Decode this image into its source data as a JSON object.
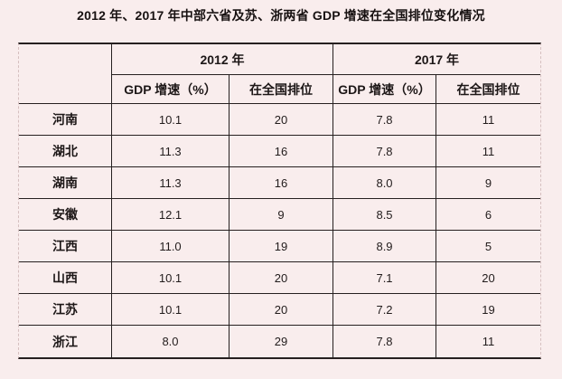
{
  "title": "2012 年、2017 年中部六省及苏、浙两省 GDP 增速在全国排位变化情况",
  "colors": {
    "page_background": "#f9eded",
    "grid_border": "#262020",
    "outer_dashed_border": "#d6c0c0",
    "text": "#1d1717"
  },
  "table": {
    "corner_label": "",
    "year_headers": [
      "2012 年",
      "2017 年"
    ],
    "sub_headers": [
      "GDP 增速（%）",
      "在全国排位",
      "GDP 增速（%）",
      "在全国排位"
    ],
    "rows": [
      {
        "province": "河南",
        "values": [
          "10.1",
          "20",
          "7.8",
          "11"
        ]
      },
      {
        "province": "湖北",
        "values": [
          "11.3",
          "16",
          "7.8",
          "11"
        ]
      },
      {
        "province": "湖南",
        "values": [
          "11.3",
          "16",
          "8.0",
          "9"
        ]
      },
      {
        "province": "安徽",
        "values": [
          "12.1",
          "9",
          "8.5",
          "6"
        ]
      },
      {
        "province": "江西",
        "values": [
          "11.0",
          "19",
          "8.9",
          "5"
        ]
      },
      {
        "province": "山西",
        "values": [
          "10.1",
          "20",
          "7.1",
          "20"
        ]
      },
      {
        "province": "江苏",
        "values": [
          "10.1",
          "20",
          "7.2",
          "19"
        ]
      },
      {
        "province": "浙江",
        "values": [
          "8.0",
          "29",
          "7.8",
          "11"
        ]
      }
    ]
  },
  "chart_data": {
    "type": "table",
    "title": "2012 年、2017 年中部六省及苏、浙两省 GDP 增速在全国排位变化情况",
    "column_groups": [
      {
        "label": "2012 年",
        "span": 2
      },
      {
        "label": "2017 年",
        "span": 2
      }
    ],
    "columns": [
      "",
      "GDP 增速（%）",
      "在全国排位",
      "GDP 增速（%）",
      "在全国排位"
    ],
    "rows": [
      [
        "河南",
        10.1,
        20,
        7.8,
        11
      ],
      [
        "湖北",
        11.3,
        16,
        7.8,
        11
      ],
      [
        "湖南",
        11.3,
        16,
        8.0,
        9
      ],
      [
        "安徽",
        12.1,
        9,
        8.5,
        6
      ],
      [
        "江西",
        11.0,
        19,
        8.9,
        5
      ],
      [
        "山西",
        10.1,
        20,
        7.1,
        20
      ],
      [
        "江苏",
        10.1,
        20,
        7.2,
        19
      ],
      [
        "浙江",
        8.0,
        29,
        7.8,
        11
      ]
    ]
  }
}
